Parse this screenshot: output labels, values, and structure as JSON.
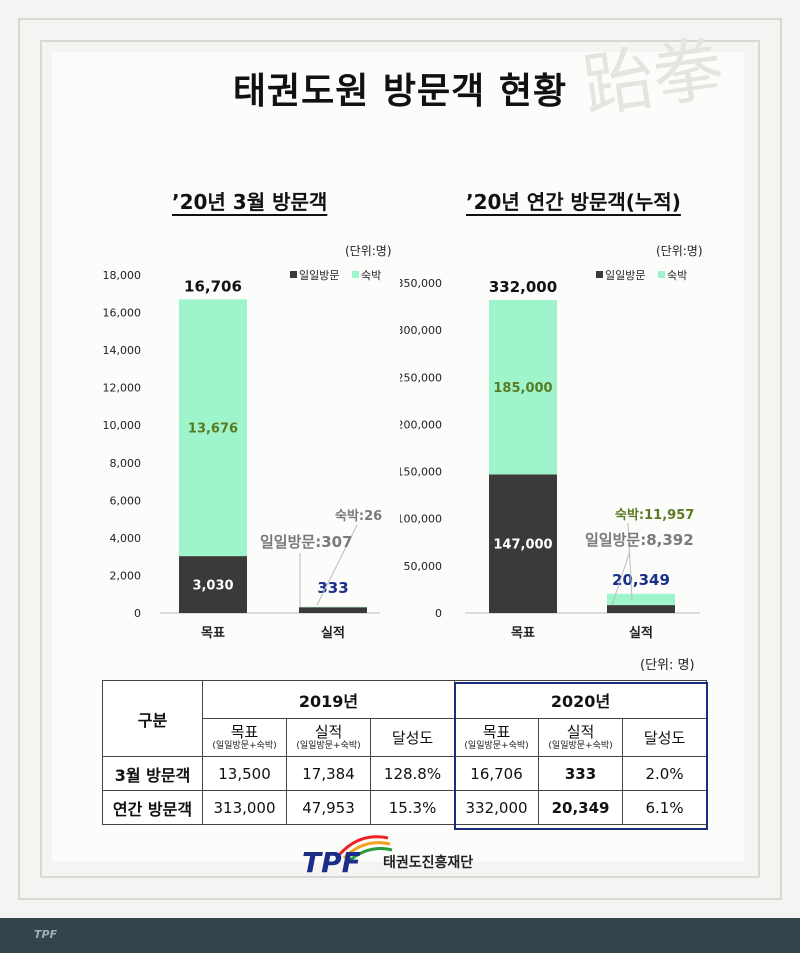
{
  "page": {
    "title": "태권도원 방문객 현황",
    "watermark": "跆拳"
  },
  "charts": [
    {
      "subtitle": "’20년 3월 방문객",
      "unit": "(단위:명)"
    },
    {
      "subtitle": "’20년 연간 방문객(누적)",
      "unit": "(단위:명)"
    }
  ],
  "chart_data": [
    {
      "type": "bar",
      "stacked": true,
      "title": "’20년 3월 방문객",
      "categories": [
        "목표",
        "실적"
      ],
      "series": [
        {
          "name": "일일방문",
          "values": [
            3030,
            307
          ],
          "color": "#3b3a38"
        },
        {
          "name": "숙박",
          "values": [
            13676,
            26
          ],
          "color": "#9ff5cb"
        }
      ],
      "totals": [
        16706,
        333
      ],
      "yticks": [
        0,
        2000,
        4000,
        6000,
        8000,
        10000,
        12000,
        14000,
        16000,
        18000
      ],
      "ytick_labels": [
        "0",
        "2,000",
        "4,000",
        "6,000",
        "8,000",
        "10,000",
        "12,000",
        "14,000",
        "16,000",
        "18,000"
      ],
      "ylim": [
        0,
        18000
      ],
      "legend": "top-right",
      "labels": {
        "total_target": "16,706",
        "total_actual": "333",
        "seg_target_day": "3,030",
        "seg_target_stay": "13,676",
        "callout_stay": "숙박:26",
        "callout_day": "일일방문:307"
      }
    },
    {
      "type": "bar",
      "stacked": true,
      "title": "’20년 연간 방문객(누적)",
      "categories": [
        "목표",
        "실적"
      ],
      "series": [
        {
          "name": "일일방문",
          "values": [
            147000,
            8392
          ],
          "color": "#3b3a38"
        },
        {
          "name": "숙박",
          "values": [
            185000,
            11957
          ],
          "color": "#9ff5cb"
        }
      ],
      "totals": [
        332000,
        20349
      ],
      "yticks": [
        0,
        50000,
        100000,
        150000,
        200000,
        250000,
        300000,
        350000
      ],
      "ytick_labels": [
        "0",
        "50,000",
        "100,000",
        "150,000",
        "200,000",
        "250,000",
        "300,000",
        "350,000"
      ],
      "ylim": [
        0,
        350000
      ],
      "legend": "top-right",
      "labels": {
        "total_target": "332,000",
        "total_actual": "20,349",
        "seg_target_day": "147,000",
        "seg_target_stay": "185,000",
        "callout_stay": "숙박:11,957",
        "callout_day": "일일방문:8,392"
      }
    }
  ],
  "table": {
    "unit": "(단위: 명)",
    "header_category": "구분",
    "year_2019": "2019년",
    "year_2020": "2020년",
    "col_target": "목표",
    "col_actual": "실적",
    "col_sub": "(일일방문+숙박)",
    "col_rate": "달성도",
    "rows": [
      {
        "label": "3월 방문객",
        "t2019": "13,500",
        "a2019": "17,384",
        "r2019": "128.8%",
        "t2020": "16,706",
        "a2020": "333",
        "r2020": "2.0%"
      },
      {
        "label": "연간 방문객",
        "t2019": "313,000",
        "a2019": "47,953",
        "r2019": "15.3%",
        "t2020": "332,000",
        "a2020": "20,349",
        "r2020": "6.1%"
      }
    ]
  },
  "footer": {
    "logo_text": "TPF",
    "org_name": "태권도진흥재단",
    "footer_logo": "TPF"
  },
  "colors": {
    "day": "#3b3a38",
    "stay": "#9ff5cb",
    "stay_label": "#5a7a22",
    "blue_value": "#1a2f8c",
    "gray_label": "#7a7a7a"
  }
}
